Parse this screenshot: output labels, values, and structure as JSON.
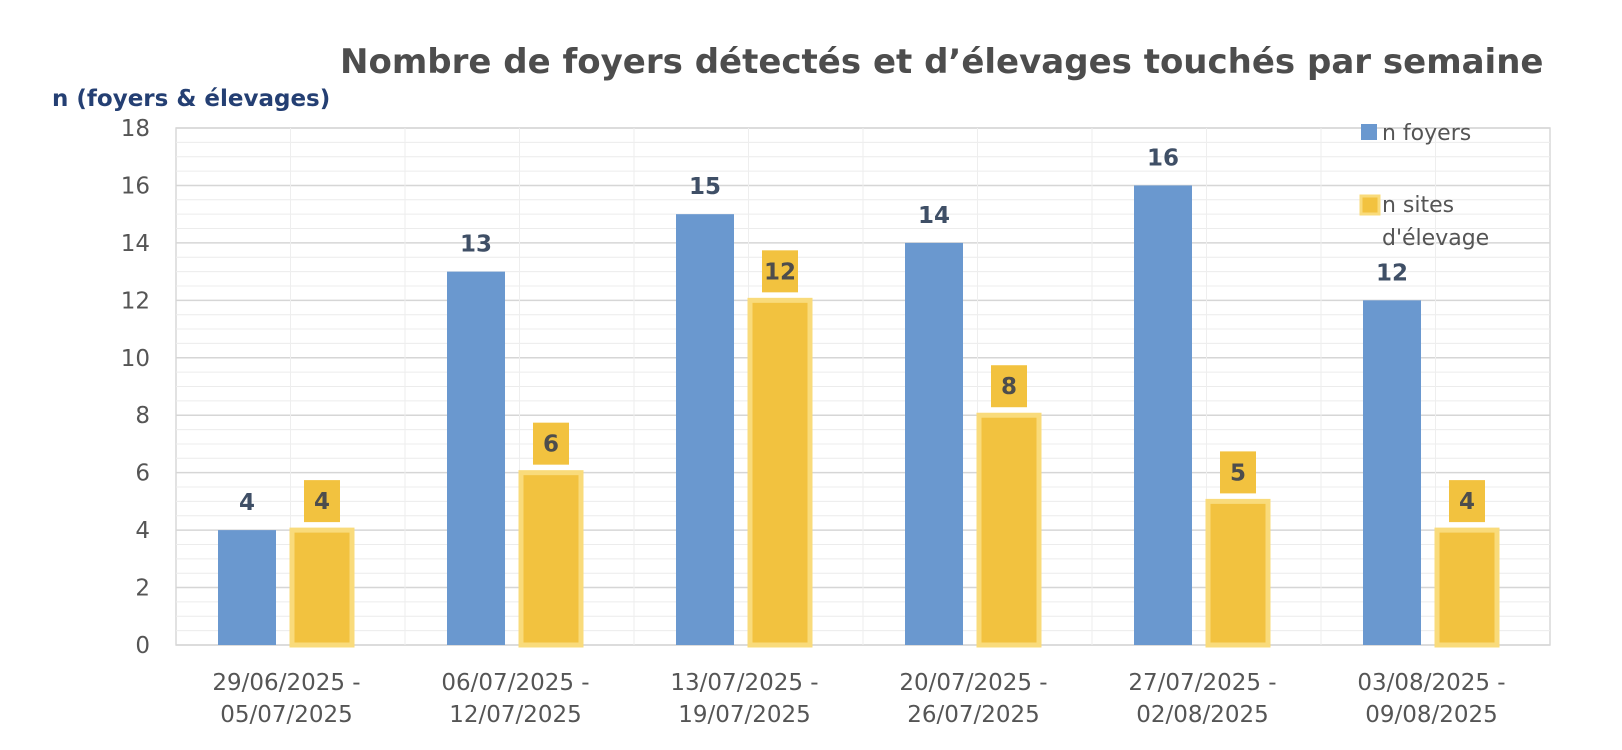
{
  "chart_data": {
    "type": "bar",
    "title": "Nombre de foyers détectés et d’élevages touchés par semaine",
    "ylabel": "n (foyers & élevages)",
    "xlabel": "",
    "ylim": [
      0,
      18
    ],
    "yticks": [
      0,
      2,
      4,
      6,
      8,
      10,
      12,
      14,
      16,
      18
    ],
    "grid": true,
    "legend_position": "top-right",
    "categories": [
      [
        "29/06/2025 -",
        "05/07/2025"
      ],
      [
        "06/07/2025 -",
        "12/07/2025"
      ],
      [
        "13/07/2025 -",
        "19/07/2025"
      ],
      [
        "20/07/2025 -",
        "26/07/2025"
      ],
      [
        "27/07/2025 -",
        "02/08/2025"
      ],
      [
        "03/08/2025 -",
        "09/08/2025"
      ]
    ],
    "series": [
      {
        "name": "n foyers",
        "legend_lines": [
          "n foyers"
        ],
        "color": "#6a98cf",
        "values": [
          4,
          13,
          15,
          14,
          16,
          12
        ]
      },
      {
        "name": "n sites d'élevage",
        "legend_lines": [
          "n sites",
          "d'élevage"
        ],
        "color": "#f2c23f",
        "border_color": "#f9db7b",
        "values": [
          4,
          6,
          12,
          8,
          5,
          4
        ]
      }
    ]
  }
}
